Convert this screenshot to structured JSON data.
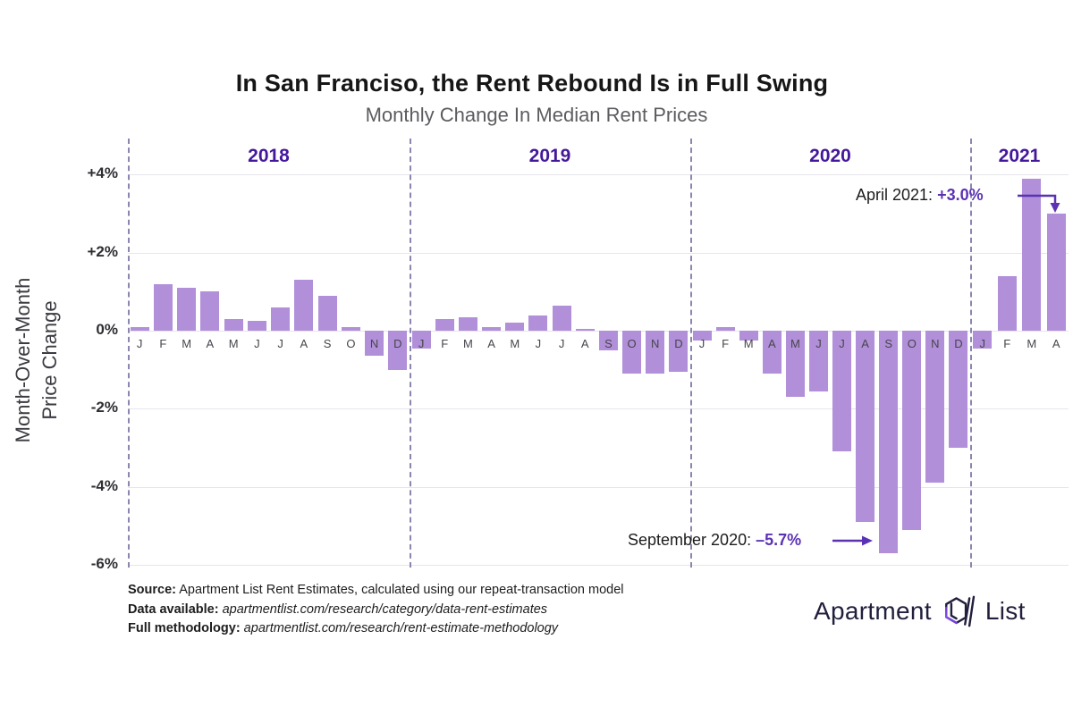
{
  "title": "In San Franciso, the Rent Rebound Is in Full Swing",
  "subtitle": "Monthly Change In Median Rent Prices",
  "y_axis": {
    "line1": "Month-Over-Month",
    "line2": "Price Change"
  },
  "annotations": {
    "april": {
      "label": "April 2021: ",
      "value": "+3.0%"
    },
    "september": {
      "label": "September 2020: ",
      "value": "–5.7%"
    }
  },
  "source": {
    "source_label": "Source:",
    "source_text": " Apartment List Rent Estimates, calculated using our repeat-transaction model",
    "data_label": "Data available:",
    "data_text": " apartmentlist.com/research/category/data-rent-estimates",
    "method_label": "Full methodology:",
    "method_text": " apartmentlist.com/research/rent-estimate-methodology"
  },
  "logo": {
    "word1": "Apartment",
    "word2": "List"
  },
  "colors": {
    "bar": "#b18fd9",
    "year_label": "#44189b",
    "annotation_accent": "#5b32b4",
    "divider": "#8a86ae",
    "gridline": "#e6e5ec"
  },
  "chart_data": {
    "type": "bar",
    "title": "In San Franciso, the Rent Rebound Is in Full Swing",
    "subtitle": "Monthly Change In Median Rent Prices",
    "ylabel": "Month-Over-Month Price Change",
    "unit": "percent",
    "ylim": [
      -6,
      4
    ],
    "grid": true,
    "yticks": [
      {
        "value": 4,
        "label": "+4%"
      },
      {
        "value": 2,
        "label": "+2%"
      },
      {
        "value": 0,
        "label": "0%"
      },
      {
        "value": -2,
        "label": "-2%"
      },
      {
        "value": -4,
        "label": "-4%"
      },
      {
        "value": -6,
        "label": "-6%"
      }
    ],
    "years": [
      {
        "year": "2018",
        "months": [
          "J",
          "F",
          "M",
          "A",
          "M",
          "J",
          "J",
          "A",
          "S",
          "O",
          "N",
          "D"
        ],
        "values": [
          0.1,
          1.2,
          1.1,
          1.0,
          0.3,
          0.25,
          0.6,
          1.3,
          0.9,
          0.1,
          -0.65,
          -1.0
        ]
      },
      {
        "year": "2019",
        "months": [
          "J",
          "F",
          "M",
          "A",
          "M",
          "J",
          "J",
          "A",
          "S",
          "O",
          "N",
          "D"
        ],
        "values": [
          -0.45,
          0.3,
          0.35,
          0.1,
          0.2,
          0.4,
          0.65,
          0.05,
          -0.5,
          -1.1,
          -1.1,
          -1.05
        ]
      },
      {
        "year": "2020",
        "months": [
          "J",
          "F",
          "M",
          "A",
          "M",
          "J",
          "J",
          "A",
          "S",
          "O",
          "N",
          "D"
        ],
        "values": [
          -0.25,
          0.1,
          -0.25,
          -1.1,
          -1.7,
          -1.55,
          -3.1,
          -4.9,
          -5.7,
          -5.1,
          -3.9,
          -3.0
        ]
      },
      {
        "year": "2021",
        "months": [
          "J",
          "F",
          "M",
          "A"
        ],
        "values": [
          -0.45,
          1.4,
          3.9,
          3.0
        ]
      }
    ],
    "callouts": [
      {
        "text": "April 2021: +3.0%",
        "points_to": {
          "year": "2021",
          "month_index": 3
        }
      },
      {
        "text": "September 2020: –5.7%",
        "points_to": {
          "year": "2020",
          "month_index": 8
        }
      }
    ]
  }
}
